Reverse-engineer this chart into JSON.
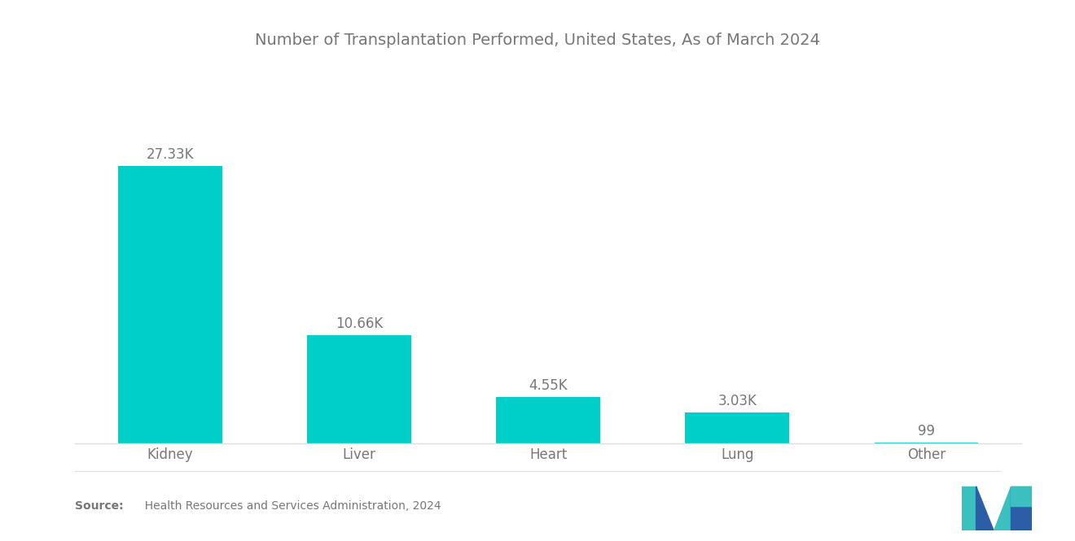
{
  "title": "Number of Transplantation Performed, United States, As of March 2024",
  "categories": [
    "Kidney",
    "Liver",
    "Heart",
    "Lung",
    "Other"
  ],
  "values": [
    27330,
    10660,
    4550,
    3030,
    99
  ],
  "labels": [
    "27.33K",
    "10.66K",
    "4.55K",
    "3.03K",
    "99"
  ],
  "bar_color": "#00CEC9",
  "background_color": "#FFFFFF",
  "title_fontsize": 14,
  "label_fontsize": 12,
  "tick_fontsize": 12,
  "source_bold": "Source:",
  "source_rest": "  Health Resources and Services Administration, 2024",
  "ylim": [
    0,
    33000
  ],
  "bar_width": 0.55,
  "text_color": "#777777",
  "logo_teal": "#3BBFBF",
  "logo_blue": "#2B5EA7"
}
